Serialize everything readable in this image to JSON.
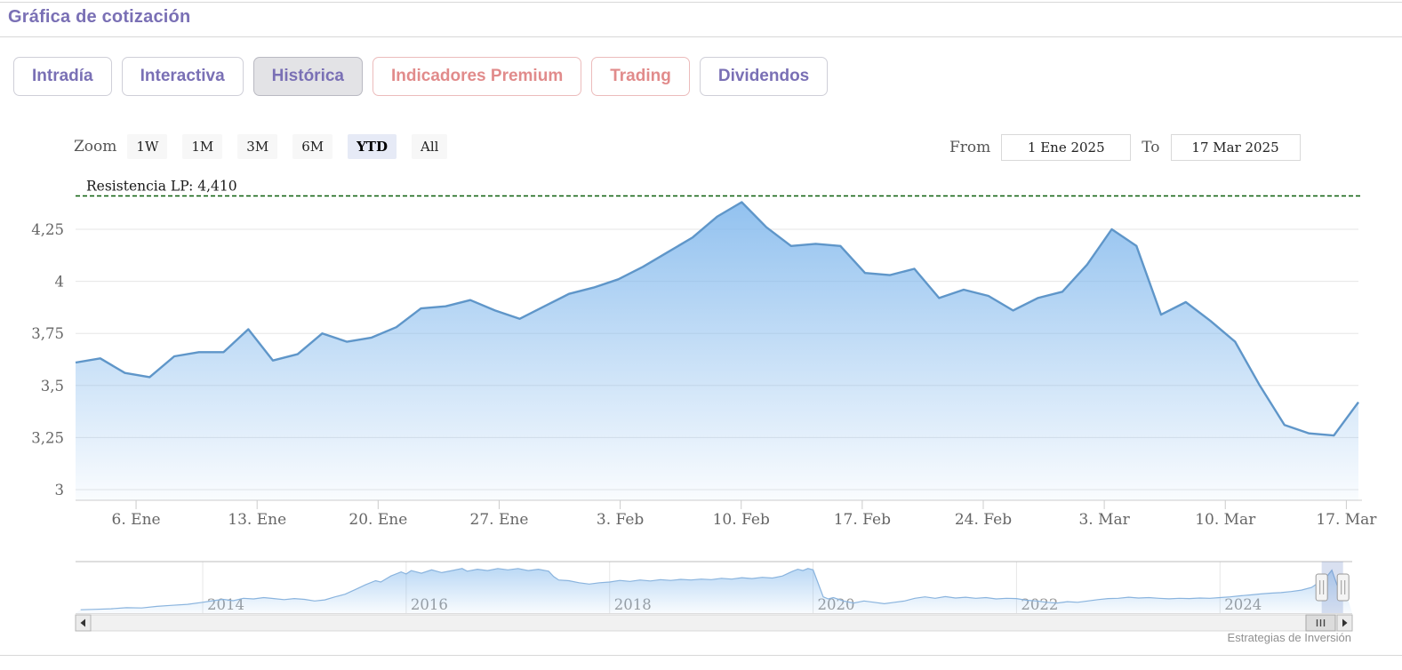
{
  "header": {
    "title": "Gráfica de cotización"
  },
  "tabs": [
    {
      "label": "Intradía",
      "variant": "purple",
      "active": false
    },
    {
      "label": "Interactiva",
      "variant": "purple",
      "active": false
    },
    {
      "label": "Histórica",
      "variant": "purple",
      "active": true
    },
    {
      "label": "Indicadores Premium",
      "variant": "premium",
      "active": false
    },
    {
      "label": "Trading",
      "variant": "premium",
      "active": false
    },
    {
      "label": "Dividendos",
      "variant": "purple",
      "active": false
    }
  ],
  "range_selector": {
    "zoom_label": "Zoom",
    "buttons": [
      "1W",
      "1M",
      "3M",
      "6M",
      "YTD",
      "All"
    ],
    "active_button": "YTD",
    "from_label": "From",
    "from_value": "1 Ene 2025",
    "to_label": "To",
    "to_value": "17 Mar 2025"
  },
  "chart_data": {
    "type": "area",
    "title": "",
    "xlabel": "",
    "ylabel": "",
    "ylim": [
      3,
      4.52
    ],
    "grid": true,
    "y_ticks": [
      3,
      3.25,
      3.5,
      3.75,
      4,
      4.25
    ],
    "y_tick_labels": [
      "3",
      "3,25",
      "3,5",
      "3,75",
      "4",
      "4,25"
    ],
    "x_tick_labels": [
      "6. Ene",
      "13. Ene",
      "20. Ene",
      "27. Ene",
      "3. Feb",
      "10. Feb",
      "17. Feb",
      "24. Feb",
      "3. Mar",
      "10. Mar",
      "17. Mar"
    ],
    "x_tick_indices": [
      2,
      7,
      12,
      17,
      22,
      27,
      32,
      37,
      42,
      47,
      52
    ],
    "annotation": {
      "label": "Resistencia LP: 4,410",
      "value": 4.41,
      "style": "dashed",
      "color": "#0a5d0a"
    },
    "series": [
      {
        "name": "Cotización",
        "dates": [
          "2025-01-02",
          "2025-01-03",
          "2025-01-06",
          "2025-01-07",
          "2025-01-08",
          "2025-01-09",
          "2025-01-10",
          "2025-01-13",
          "2025-01-14",
          "2025-01-15",
          "2025-01-16",
          "2025-01-17",
          "2025-01-20",
          "2025-01-21",
          "2025-01-22",
          "2025-01-23",
          "2025-01-24",
          "2025-01-27",
          "2025-01-28",
          "2025-01-29",
          "2025-01-30",
          "2025-01-31",
          "2025-02-03",
          "2025-02-04",
          "2025-02-05",
          "2025-02-06",
          "2025-02-07",
          "2025-02-10",
          "2025-02-11",
          "2025-02-12",
          "2025-02-13",
          "2025-02-14",
          "2025-02-17",
          "2025-02-18",
          "2025-02-19",
          "2025-02-20",
          "2025-02-21",
          "2025-02-24",
          "2025-02-25",
          "2025-02-26",
          "2025-02-27",
          "2025-02-28",
          "2025-03-03",
          "2025-03-04",
          "2025-03-05",
          "2025-03-06",
          "2025-03-07",
          "2025-03-10",
          "2025-03-11",
          "2025-03-12",
          "2025-03-13",
          "2025-03-14",
          "2025-03-17"
        ],
        "values": [
          3.61,
          3.63,
          3.56,
          3.54,
          3.64,
          3.66,
          3.66,
          3.77,
          3.62,
          3.65,
          3.75,
          3.71,
          3.73,
          3.78,
          3.87,
          3.88,
          3.91,
          3.86,
          3.82,
          3.88,
          3.94,
          3.97,
          4.01,
          4.07,
          4.14,
          4.21,
          4.31,
          4.38,
          4.26,
          4.17,
          4.18,
          4.17,
          4.04,
          4.03,
          4.06,
          3.92,
          3.96,
          3.93,
          3.86,
          3.92,
          3.95,
          4.08,
          4.25,
          4.17,
          3.84,
          3.9,
          3.81,
          3.71,
          3.5,
          3.31,
          3.27,
          3.26,
          3.42
        ]
      }
    ]
  },
  "navigator": {
    "year_labels": [
      "2014",
      "2016",
      "2018",
      "2020",
      "2022",
      "2024"
    ],
    "year_values": [
      2014,
      2016,
      2018,
      2020,
      2022,
      2024
    ],
    "xlim": [
      2012.75,
      2025.3
    ],
    "ylim": [
      1.2,
      4.75
    ],
    "selected_range": [
      2025.0,
      2025.21
    ],
    "series": [
      [
        2012.8,
        1.45
      ],
      [
        2012.95,
        1.48
      ],
      [
        2013.1,
        1.52
      ],
      [
        2013.25,
        1.6
      ],
      [
        2013.4,
        1.58
      ],
      [
        2013.55,
        1.7
      ],
      [
        2013.7,
        1.78
      ],
      [
        2013.85,
        1.85
      ],
      [
        2014.0,
        2.0
      ],
      [
        2014.1,
        2.12
      ],
      [
        2014.2,
        2.22
      ],
      [
        2014.3,
        2.12
      ],
      [
        2014.4,
        2.3
      ],
      [
        2014.5,
        2.25
      ],
      [
        2014.6,
        2.35
      ],
      [
        2014.7,
        2.28
      ],
      [
        2014.8,
        2.2
      ],
      [
        2014.9,
        2.28
      ],
      [
        2015.0,
        2.22
      ],
      [
        2015.1,
        2.1
      ],
      [
        2015.2,
        2.18
      ],
      [
        2015.3,
        2.4
      ],
      [
        2015.4,
        2.6
      ],
      [
        2015.5,
        2.95
      ],
      [
        2015.6,
        3.3
      ],
      [
        2015.7,
        3.6
      ],
      [
        2015.75,
        3.5
      ],
      [
        2015.85,
        3.95
      ],
      [
        2015.95,
        4.25
      ],
      [
        2016.0,
        4.1
      ],
      [
        2016.05,
        4.35
      ],
      [
        2016.15,
        4.15
      ],
      [
        2016.25,
        4.4
      ],
      [
        2016.35,
        4.2
      ],
      [
        2016.45,
        4.35
      ],
      [
        2016.55,
        4.5
      ],
      [
        2016.6,
        4.3
      ],
      [
        2016.7,
        4.45
      ],
      [
        2016.8,
        4.35
      ],
      [
        2016.9,
        4.5
      ],
      [
        2017.0,
        4.4
      ],
      [
        2017.1,
        4.5
      ],
      [
        2017.2,
        4.35
      ],
      [
        2017.3,
        4.45
      ],
      [
        2017.4,
        4.3
      ],
      [
        2017.45,
        3.9
      ],
      [
        2017.5,
        3.65
      ],
      [
        2017.6,
        3.6
      ],
      [
        2017.7,
        3.45
      ],
      [
        2017.8,
        3.35
      ],
      [
        2017.9,
        3.45
      ],
      [
        2018.0,
        3.5
      ],
      [
        2018.1,
        3.62
      ],
      [
        2018.2,
        3.55
      ],
      [
        2018.3,
        3.65
      ],
      [
        2018.4,
        3.58
      ],
      [
        2018.5,
        3.68
      ],
      [
        2018.6,
        3.62
      ],
      [
        2018.7,
        3.7
      ],
      [
        2018.8,
        3.65
      ],
      [
        2018.9,
        3.72
      ],
      [
        2019.0,
        3.68
      ],
      [
        2019.1,
        3.78
      ],
      [
        2019.2,
        3.72
      ],
      [
        2019.3,
        3.82
      ],
      [
        2019.4,
        3.76
      ],
      [
        2019.5,
        3.85
      ],
      [
        2019.6,
        3.8
      ],
      [
        2019.7,
        3.95
      ],
      [
        2019.8,
        4.3
      ],
      [
        2019.85,
        4.45
      ],
      [
        2019.9,
        4.35
      ],
      [
        2019.95,
        4.5
      ],
      [
        2020.0,
        4.4
      ],
      [
        2020.05,
        3.4
      ],
      [
        2020.1,
        2.4
      ],
      [
        2020.15,
        2.25
      ],
      [
        2020.2,
        2.35
      ],
      [
        2020.3,
        2.1
      ],
      [
        2020.4,
        1.95
      ],
      [
        2020.5,
        2.1
      ],
      [
        2020.6,
        2.0
      ],
      [
        2020.7,
        1.9
      ],
      [
        2020.8,
        2.0
      ],
      [
        2020.9,
        2.1
      ],
      [
        2021.0,
        2.3
      ],
      [
        2021.1,
        2.4
      ],
      [
        2021.2,
        2.3
      ],
      [
        2021.3,
        2.42
      ],
      [
        2021.4,
        2.32
      ],
      [
        2021.5,
        2.38
      ],
      [
        2021.6,
        2.3
      ],
      [
        2021.7,
        2.35
      ],
      [
        2021.8,
        2.25
      ],
      [
        2021.9,
        2.3
      ],
      [
        2022.0,
        2.28
      ],
      [
        2022.1,
        2.15
      ],
      [
        2022.2,
        2.1
      ],
      [
        2022.3,
        2.0
      ],
      [
        2022.4,
        1.95
      ],
      [
        2022.5,
        2.05
      ],
      [
        2022.6,
        2.0
      ],
      [
        2022.7,
        2.1
      ],
      [
        2022.8,
        2.2
      ],
      [
        2022.9,
        2.28
      ],
      [
        2023.0,
        2.3
      ],
      [
        2023.1,
        2.38
      ],
      [
        2023.2,
        2.32
      ],
      [
        2023.3,
        2.35
      ],
      [
        2023.4,
        2.3
      ],
      [
        2023.5,
        2.26
      ],
      [
        2023.6,
        2.3
      ],
      [
        2023.7,
        2.28
      ],
      [
        2023.8,
        2.32
      ],
      [
        2023.9,
        2.3
      ],
      [
        2024.0,
        2.35
      ],
      [
        2024.1,
        2.4
      ],
      [
        2024.2,
        2.48
      ],
      [
        2024.3,
        2.55
      ],
      [
        2024.4,
        2.62
      ],
      [
        2024.5,
        2.68
      ],
      [
        2024.6,
        2.72
      ],
      [
        2024.7,
        2.8
      ],
      [
        2024.8,
        2.9
      ],
      [
        2024.9,
        3.1
      ],
      [
        2025.0,
        3.6
      ],
      [
        2025.05,
        3.9
      ],
      [
        2025.1,
        4.38
      ],
      [
        2025.15,
        3.3
      ],
      [
        2025.21,
        3.42
      ]
    ]
  },
  "scrollbar": {
    "left_arrow": "left",
    "right_arrow": "right",
    "grip": "III"
  },
  "credit": "Estrategias de Inversión",
  "colors": {
    "accent_purple": "#7a70b5",
    "premium_salmon": "#e18b8b",
    "series_line": "#5f96c9",
    "series_fill": "#7cb5ec",
    "resistance_green": "#0a5d0a",
    "grid": "#e6e6e6",
    "axis_line": "#cccccc",
    "axis_text": "#666666",
    "nav_text": "#999999",
    "nav_mask": "rgba(102,133,194,0.25)",
    "zoom_active_bg": "#e6eaf6"
  }
}
